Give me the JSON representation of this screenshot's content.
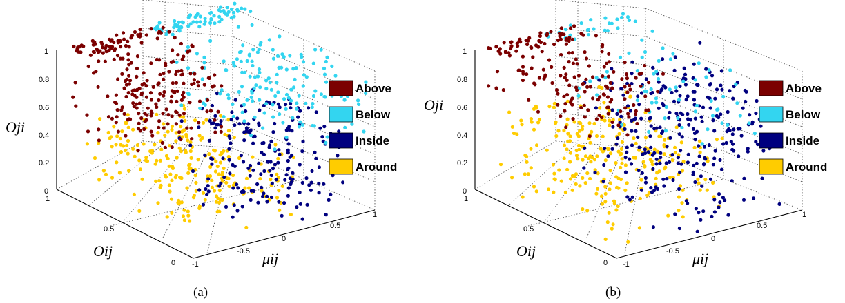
{
  "chart_data": [
    {
      "type": "scatter",
      "caption": "(a)",
      "axes": {
        "x": {
          "label": "Oij",
          "ticks": [
            "0",
            "0.5",
            "1"
          ]
        },
        "y": {
          "label": "μij",
          "ticks": [
            "-1",
            "-0.5",
            "0",
            "0.5",
            "1"
          ]
        },
        "z": {
          "label": "Oji",
          "ticks": [
            "0",
            "0.2",
            "0.4",
            "0.6",
            "0.8",
            "1"
          ]
        }
      },
      "legend": {
        "position": "right",
        "entries": [
          "Above",
          "Below",
          "Inside",
          "Around"
        ]
      },
      "grid": true,
      "series": [
        {
          "name": "Above",
          "color": "#7b0000",
          "seed": 11,
          "count": 260,
          "oij": [
            0.4,
            1.0
          ],
          "mu": [
            -0.9,
            0.1
          ],
          "oji": [
            0.4,
            1.0
          ],
          "ridge": true
        },
        {
          "name": "Below",
          "color": "#33d5f0",
          "seed": 23,
          "count": 230,
          "oij": [
            0.0,
            0.8
          ],
          "mu": [
            0.0,
            0.95
          ],
          "oji": [
            0.5,
            1.0
          ],
          "ridge": true
        },
        {
          "name": "Inside",
          "color": "#00007f",
          "seed": 37,
          "count": 200,
          "oij": [
            0.0,
            0.6
          ],
          "mu": [
            -0.3,
            0.8
          ],
          "oji": [
            0.0,
            0.7
          ],
          "ridge": false
        },
        {
          "name": "Around",
          "color": "#ffcc00",
          "seed": 41,
          "count": 240,
          "oij": [
            0.1,
            1.0
          ],
          "mu": [
            -0.8,
            0.4
          ],
          "oji": [
            0.0,
            0.45
          ],
          "ridge": false
        }
      ]
    },
    {
      "type": "scatter",
      "caption": "(b)",
      "axes": {
        "x": {
          "label": "Oij",
          "ticks": [
            "0",
            "0.5",
            "1"
          ]
        },
        "y": {
          "label": "μij",
          "ticks": [
            "-1",
            "-0.5",
            "0",
            "0.5",
            "1"
          ]
        },
        "z": {
          "label": "Oji",
          "ticks": [
            "0",
            "0.2",
            "0.4",
            "0.6",
            "0.8",
            "1"
          ]
        }
      },
      "legend": {
        "position": "right",
        "entries": [
          "Above",
          "Below",
          "Inside",
          "Around"
        ]
      },
      "grid": true,
      "series": [
        {
          "name": "Above",
          "color": "#7b0000",
          "seed": 53,
          "count": 190,
          "oij": [
            0.3,
            1.0
          ],
          "mu": [
            -0.9,
            0.1
          ],
          "oji": [
            0.6,
            1.0
          ],
          "ridge": true
        },
        {
          "name": "Below",
          "color": "#33d5f0",
          "seed": 67,
          "count": 90,
          "oij": [
            0.0,
            0.8
          ],
          "mu": [
            -0.3,
            0.6
          ],
          "oji": [
            0.6,
            1.0
          ],
          "ridge": true
        },
        {
          "name": "Inside",
          "color": "#00007f",
          "seed": 71,
          "count": 280,
          "oij": [
            0.0,
            0.7
          ],
          "mu": [
            -0.4,
            0.9
          ],
          "oji": [
            0.0,
            0.9
          ],
          "ridge": false
        },
        {
          "name": "Around",
          "color": "#ffcc00",
          "seed": 83,
          "count": 260,
          "oij": [
            0.1,
            1.0
          ],
          "mu": [
            -0.9,
            0.4
          ],
          "oji": [
            0.0,
            0.6
          ],
          "ridge": false
        }
      ]
    }
  ]
}
